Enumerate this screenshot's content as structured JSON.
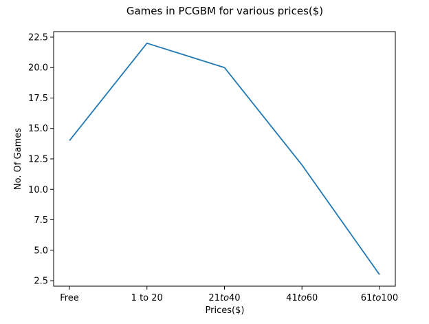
{
  "chart_data": {
    "type": "line",
    "title": "Games in PCGBM for various prices($)",
    "xlabel": "Prices($)",
    "ylabel": "No. Of Games",
    "categories": [
      "Free",
      "1 to 20",
      "21to40",
      "41to60",
      "61to100"
    ],
    "category_parts": [
      [
        {
          "text": "Free",
          "italic": false
        }
      ],
      [
        {
          "text": "1 to 20",
          "italic": false
        }
      ],
      [
        {
          "text": "21",
          "italic": false
        },
        {
          "text": "to",
          "italic": true
        },
        {
          "text": "40",
          "italic": false
        }
      ],
      [
        {
          "text": "41",
          "italic": false
        },
        {
          "text": "to",
          "italic": true
        },
        {
          "text": "60",
          "italic": false
        }
      ],
      [
        {
          "text": "61",
          "italic": false
        },
        {
          "text": "to",
          "italic": true
        },
        {
          "text": "100",
          "italic": false
        }
      ]
    ],
    "series": [
      {
        "values": [
          14,
          22,
          20,
          12,
          3
        ],
        "color": "#1f77b4"
      }
    ],
    "ylim": [
      2.05,
      22.95
    ],
    "yticks": [
      2.5,
      5.0,
      7.5,
      10.0,
      12.5,
      15.0,
      17.5,
      20.0,
      22.5
    ],
    "ytick_labels": [
      "2.5",
      "5.0",
      "7.5",
      "10.0",
      "12.5",
      "15.0",
      "17.5",
      "20.0",
      "22.5"
    ],
    "grid": false,
    "legend": "none"
  }
}
